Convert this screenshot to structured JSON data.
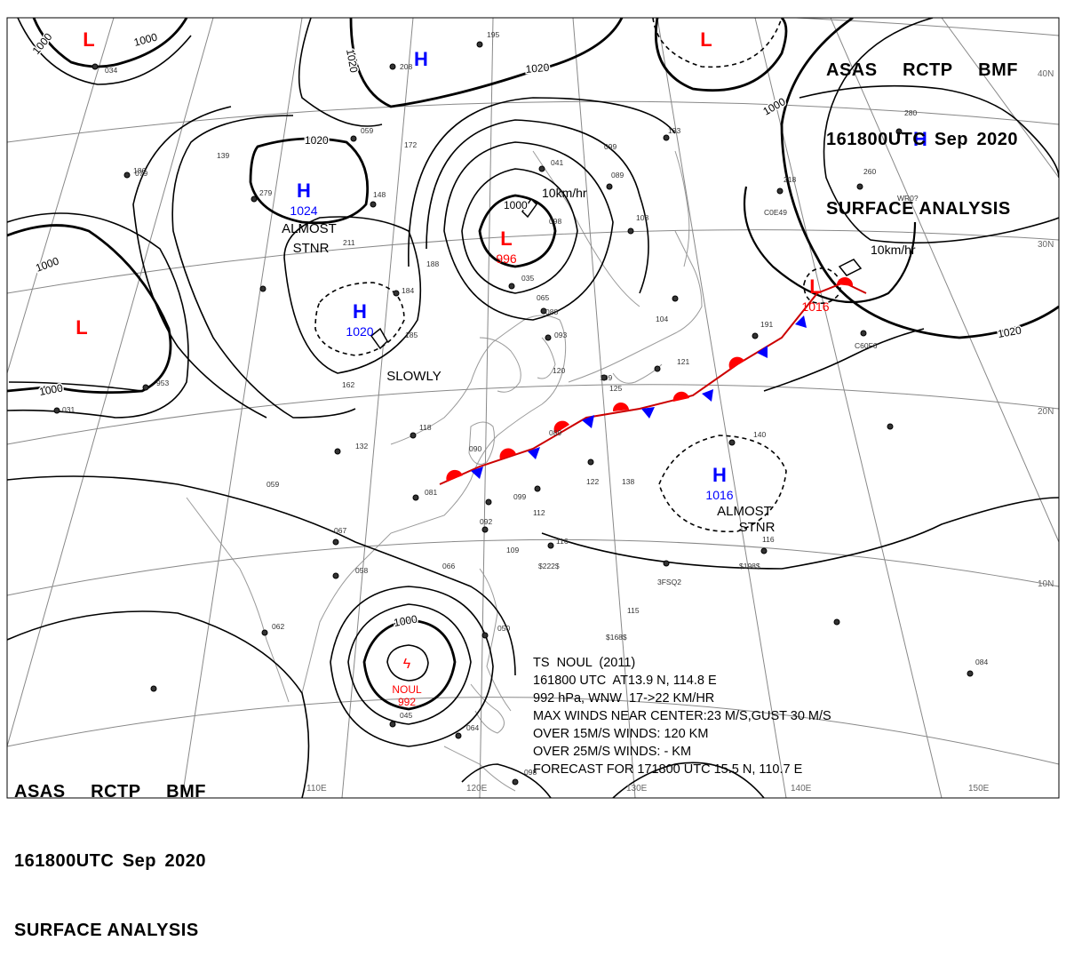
{
  "header_top_right": {
    "agency": [
      "ASAS",
      "RCTP",
      "BMF"
    ],
    "time": [
      "161800UTC",
      "Sep",
      "2020"
    ],
    "product": "SURFACE ANALYSIS"
  },
  "header_bottom_left": {
    "agency": [
      "ASAS",
      "RCTP",
      "BMF"
    ],
    "time": [
      "161800UTC",
      "Sep",
      "2020"
    ],
    "product": "SURFACE ANALYSIS"
  },
  "lon_labels": [
    "110E",
    "120E",
    "130E",
    "140E",
    "150E"
  ],
  "lat_labels": [
    "40N",
    "30N",
    "20N",
    "10N"
  ],
  "isobar_labels": [
    "1000",
    "1000",
    "1020",
    "1020",
    "1020",
    "1000",
    "1000",
    "1000",
    "1020",
    "1000",
    "1000",
    "1020"
  ],
  "pressure_centers": [
    {
      "type": "L",
      "value": "",
      "color": "#ff0000"
    },
    {
      "type": "H",
      "value": "",
      "color": "#0000ff"
    },
    {
      "type": "L",
      "value": "",
      "color": "#ff0000"
    },
    {
      "type": "H",
      "value": "1024",
      "color": "#0000ff"
    },
    {
      "type": "L",
      "value": "996",
      "color": "#ff0000"
    },
    {
      "type": "H",
      "value": "1020",
      "color": "#0000ff"
    },
    {
      "type": "L",
      "value": "",
      "color": "#ff0000"
    },
    {
      "type": "H",
      "value": "",
      "color": "#0000ff"
    },
    {
      "type": "L",
      "value": "1016",
      "color": "#ff0000"
    },
    {
      "type": "H",
      "value": "1016",
      "color": "#0000ff"
    }
  ],
  "annotations": [
    "ALMOST",
    "STNR",
    "SLOWLY",
    "ALMOST",
    "STNR"
  ],
  "motion_labels": [
    "10km/hr",
    "10km/hr"
  ],
  "typhoon": {
    "name": "NOUL",
    "pressure": "992"
  },
  "storm_info": [
    "TS  NOUL  (2011)",
    "161800 UTC  AT13.9 N, 114.8 E",
    "992 hPa, WNW  17->22 KM/HR",
    "MAX WINDS NEAR CENTER:23 M/S,GUST 30 M/S",
    "OVER 15M/S WINDS: 120 KM",
    "OVER 25M/S WINDS: - KM",
    "FORECAST FOR 171800 UTC 15.5 N, 110.7 E"
  ],
  "station_numbers": [
    "195",
    "034",
    "208",
    "059",
    "186",
    "172",
    "079",
    "139",
    "279",
    "148",
    "211",
    "184",
    "188",
    "185",
    "162",
    "953",
    "031",
    "132",
    "118",
    "059",
    "090",
    "081",
    "099",
    "067",
    "058",
    "092",
    "112",
    "109",
    "116",
    "066",
    "062",
    "050",
    "045",
    "064",
    "098",
    "041",
    "099",
    "089",
    "098",
    "108",
    "133",
    "035",
    "065",
    "088",
    "093",
    "104",
    "109",
    "125",
    "121",
    "120",
    "138",
    "122",
    "089",
    "115",
    "140",
    "116",
    "084",
    "218",
    "280",
    "260",
    "191"
  ],
  "station_codes": [
    "$222$",
    "3FSQ2",
    "$198$",
    "$168$",
    "C0E49",
    "C60F6",
    "WR0?"
  ],
  "colors": {
    "high": "#0000ff",
    "low": "#ff0000",
    "front_warm": "#ff0000",
    "front_cold": "#0000ff",
    "isobar": "#000000",
    "grid": "#888888",
    "coast": "#9a9a9a"
  }
}
